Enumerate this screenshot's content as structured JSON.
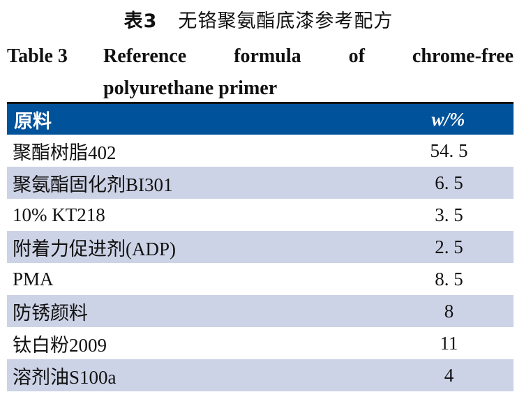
{
  "caption_cn": {
    "label": "表3",
    "title": "无铬聚氨酯底漆参考配方"
  },
  "caption_en": {
    "label": "Table 3",
    "line1": "Reference formula of chrome-free",
    "line2": "polyurethane primer"
  },
  "table": {
    "headers": [
      "原料",
      "w/%"
    ],
    "rows": [
      {
        "material": "聚酯树脂402",
        "value": "54. 5"
      },
      {
        "material": "聚氨酯固化剂BI301",
        "value": "6. 5"
      },
      {
        "material": "10% KT218",
        "value": "3. 5"
      },
      {
        "material": "附着力促进剂(ADP)",
        "value": "2. 5"
      },
      {
        "material": "PMA",
        "value": "8. 5"
      },
      {
        "material": "防锈颜料",
        "value": "8"
      },
      {
        "material": "钛白粉2009",
        "value": "11"
      },
      {
        "material": "溶剂油S100a",
        "value": "4"
      }
    ]
  },
  "colors": {
    "header_bg": "#00529b",
    "alt_row_bg": "#cdd3e6"
  }
}
